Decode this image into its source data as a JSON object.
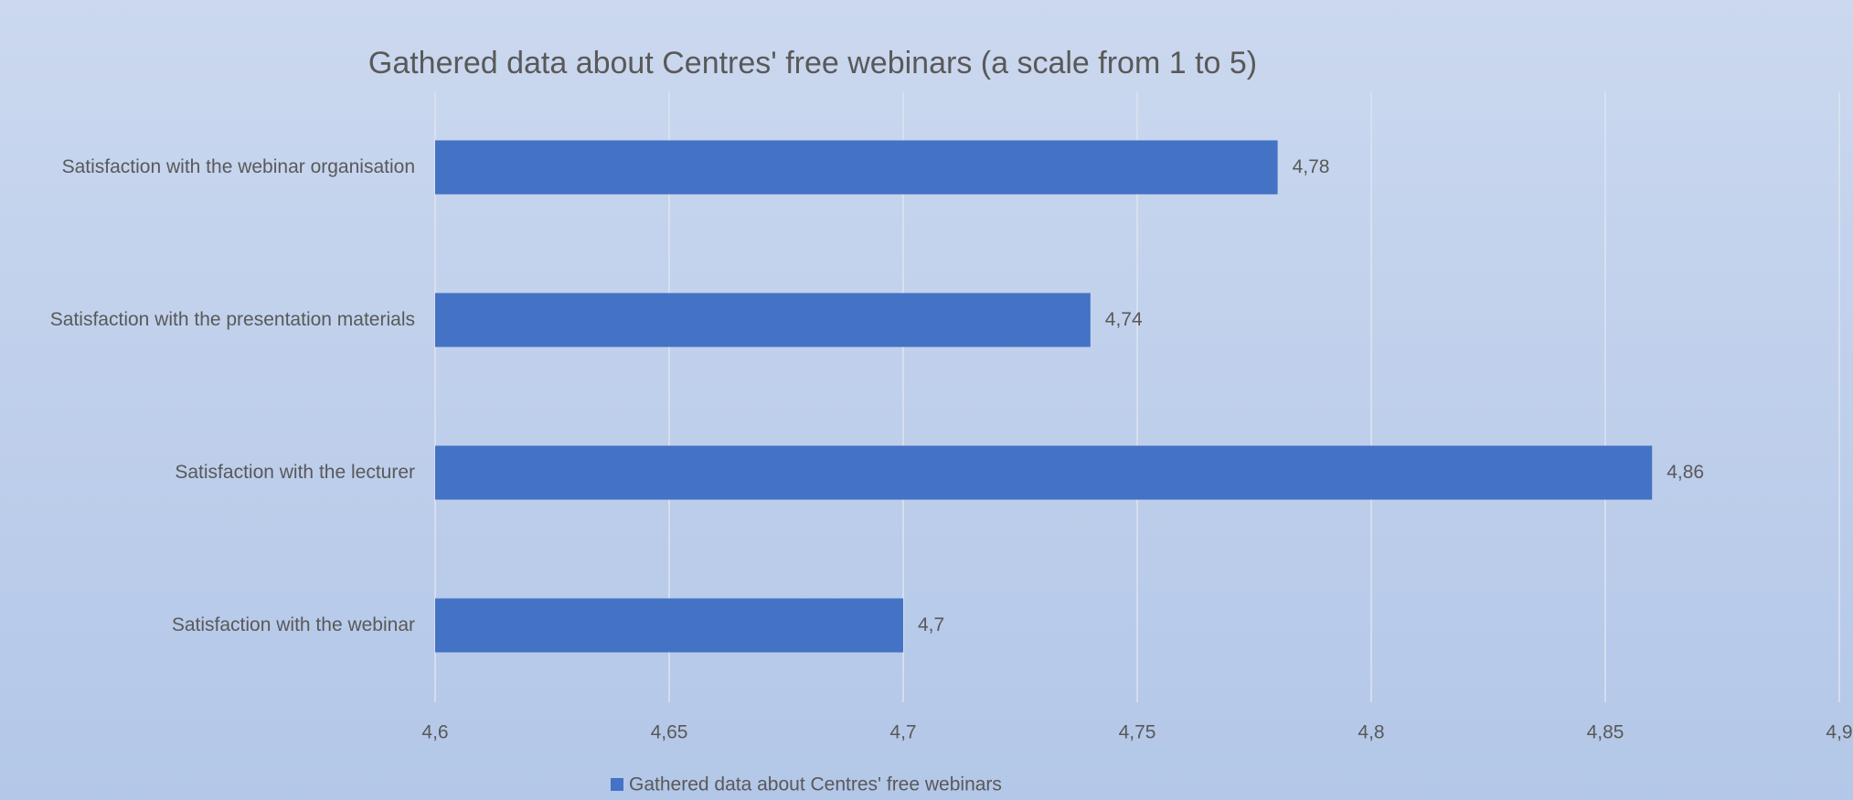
{
  "chart_data": {
    "type": "hbar",
    "title": "Gathered data about Centres' free webinars (a scale from 1 to 5)",
    "categories": [
      "Satisfaction with the webinar organisation",
      "Satisfaction with the presentation materials",
      "Satisfaction with the lecturer",
      "Satisfaction with the webinar"
    ],
    "series": [
      {
        "name": "Gathered data about Centres' free webinars",
        "color": "#4472c4",
        "values": [
          4.78,
          4.74,
          4.86,
          4.7
        ],
        "value_labels": [
          "4,78",
          "4,74",
          "4,86",
          "4,7"
        ]
      }
    ],
    "xlim": [
      4.6,
      4.9
    ],
    "xticks": [
      {
        "value": 4.6,
        "label": "4,6"
      },
      {
        "value": 4.65,
        "label": "4,65"
      },
      {
        "value": 4.7,
        "label": "4,7"
      },
      {
        "value": 4.75,
        "label": "4,75"
      },
      {
        "value": 4.8,
        "label": "4,8"
      },
      {
        "value": 4.85,
        "label": "4,85"
      },
      {
        "value": 4.9,
        "label": "4,9"
      }
    ],
    "grid": true,
    "legend": "bottom"
  }
}
